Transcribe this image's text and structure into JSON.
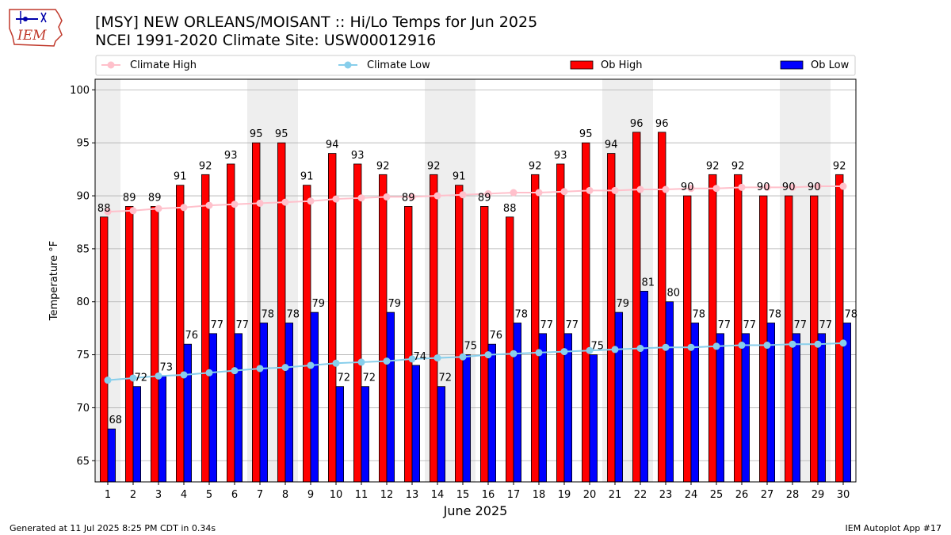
{
  "title_line1": "[MSY] NEW ORLEANS/MOISANT :: Hi/Lo Temps for Jun 2025",
  "title_line2": "NCEI 1991-2020 Climate Site: USW00012916",
  "logo_text": "IEM",
  "footer_left": "Generated at 11 Jul 2025 8:25 PM CDT in 0.34s",
  "footer_right": "IEM Autoplot App #17",
  "colors": {
    "ob_high": "#ff0000",
    "ob_low": "#0000ff",
    "climate_high": "#ffc0cb",
    "climate_low": "#87ceeb",
    "weekend_shade": "#eeeeee",
    "grid": "#b0b0b0"
  },
  "chart_data": {
    "type": "bar",
    "xlabel": "June 2025",
    "ylabel": "Temperature °F",
    "ylim": [
      63,
      101
    ],
    "yticks": [
      65,
      70,
      75,
      80,
      85,
      90,
      95,
      100
    ],
    "grid": "horizontal",
    "legend_position": "top",
    "legend": [
      "Climate High",
      "Climate Low",
      "Ob High",
      "Ob Low"
    ],
    "categories": [
      "1",
      "2",
      "3",
      "4",
      "5",
      "6",
      "7",
      "8",
      "9",
      "10",
      "11",
      "12",
      "13",
      "14",
      "15",
      "16",
      "17",
      "18",
      "19",
      "20",
      "21",
      "22",
      "23",
      "24",
      "25",
      "26",
      "27",
      "28",
      "29",
      "30"
    ],
    "weekend_days": [
      1,
      7,
      8,
      14,
      15,
      21,
      22,
      28,
      29
    ],
    "series": [
      {
        "name": "Ob High",
        "kind": "bar",
        "values": [
          88,
          89,
          89,
          91,
          92,
          93,
          95,
          95,
          91,
          94,
          93,
          92,
          89,
          92,
          91,
          89,
          88,
          92,
          93,
          95,
          94,
          96,
          96,
          90,
          92,
          92,
          90,
          90,
          90,
          92
        ]
      },
      {
        "name": "Ob Low",
        "kind": "bar",
        "values": [
          68,
          72,
          73,
          76,
          77,
          77,
          78,
          78,
          79,
          72,
          72,
          79,
          74,
          72,
          75,
          76,
          78,
          77,
          77,
          75,
          79,
          81,
          80,
          78,
          77,
          77,
          78,
          77,
          77,
          78
        ]
      },
      {
        "name": "Climate High",
        "kind": "line",
        "values": [
          88.5,
          88.6,
          88.8,
          88.9,
          89.1,
          89.2,
          89.3,
          89.4,
          89.5,
          89.7,
          89.8,
          89.9,
          89.9,
          90.0,
          90.1,
          90.2,
          90.3,
          90.3,
          90.4,
          90.5,
          90.5,
          90.6,
          90.6,
          90.7,
          90.7,
          90.8,
          90.8,
          90.8,
          90.9,
          90.9
        ]
      },
      {
        "name": "Climate Low",
        "kind": "line",
        "values": [
          72.6,
          72.8,
          73.0,
          73.1,
          73.3,
          73.5,
          73.7,
          73.8,
          74.0,
          74.2,
          74.3,
          74.4,
          74.6,
          74.7,
          74.8,
          75.0,
          75.1,
          75.2,
          75.3,
          75.4,
          75.5,
          75.6,
          75.7,
          75.7,
          75.8,
          75.9,
          75.9,
          76.0,
          76.0,
          76.1
        ]
      }
    ]
  }
}
